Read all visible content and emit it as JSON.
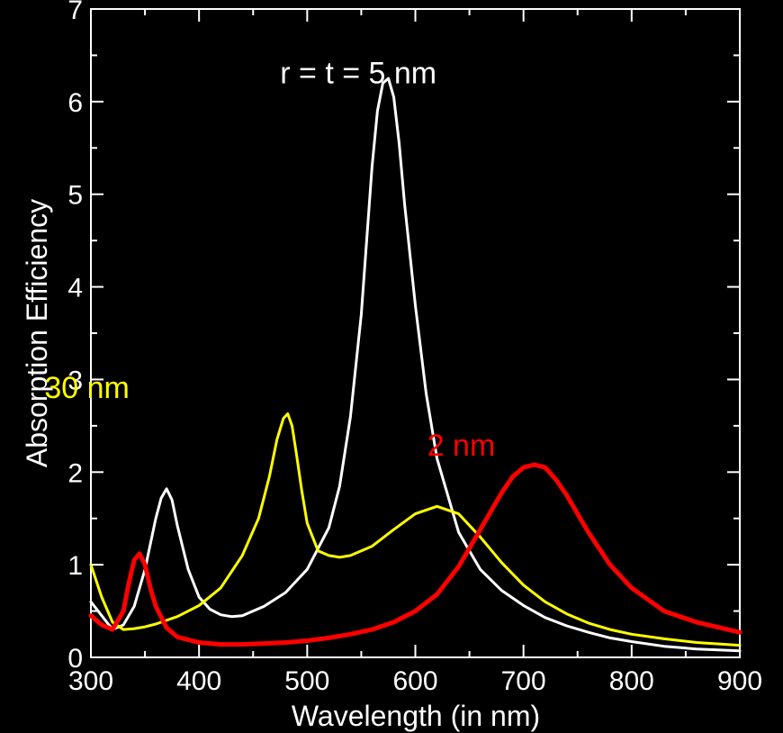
{
  "chart_data": {
    "type": "line",
    "title": "",
    "xlabel": "Wavelength (in nm)",
    "ylabel": "Absorption Efficiency",
    "xlim": [
      300,
      900
    ],
    "ylim": [
      0,
      7.0
    ],
    "xticks": [
      300,
      400,
      500,
      600,
      700,
      800,
      900
    ],
    "yticks": [
      0,
      1,
      2,
      3,
      4,
      5,
      6,
      7
    ],
    "grid": false,
    "background": "#000000",
    "axis_color": "#ffffff",
    "annotations": [
      {
        "text": "r = t = 5 nm",
        "x": 475,
        "y": 6.2,
        "color": "#ffffff"
      },
      {
        "text": "30 nm",
        "x": 257,
        "y": 2.8,
        "color": "#ffff00"
      },
      {
        "text": "2 nm",
        "x": 611,
        "y": 2.18,
        "color": "#ff0000"
      }
    ],
    "series": [
      {
        "color": "#ffffff",
        "width": 3,
        "x": [
          300,
          310,
          320,
          330,
          340,
          350,
          360,
          365,
          370,
          375,
          380,
          390,
          400,
          410,
          420,
          430,
          440,
          460,
          480,
          500,
          520,
          530,
          540,
          550,
          555,
          560,
          565,
          570,
          575,
          580,
          585,
          590,
          600,
          610,
          620,
          640,
          660,
          680,
          700,
          720,
          740,
          760,
          780,
          800,
          830,
          860,
          900
        ],
        "y": [
          0.6,
          0.45,
          0.3,
          0.35,
          0.55,
          0.95,
          1.5,
          1.72,
          1.82,
          1.7,
          1.42,
          0.95,
          0.65,
          0.52,
          0.46,
          0.44,
          0.45,
          0.55,
          0.7,
          0.95,
          1.4,
          1.85,
          2.6,
          3.7,
          4.5,
          5.3,
          5.9,
          6.2,
          6.25,
          6.05,
          5.55,
          4.9,
          3.8,
          2.85,
          2.15,
          1.35,
          0.95,
          0.72,
          0.56,
          0.43,
          0.34,
          0.27,
          0.21,
          0.17,
          0.12,
          0.09,
          0.07
        ]
      },
      {
        "color": "#ffff00",
        "width": 3,
        "x": [
          300,
          310,
          320,
          330,
          340,
          350,
          360,
          380,
          400,
          420,
          440,
          455,
          465,
          472,
          478,
          482,
          486,
          490,
          495,
          500,
          510,
          520,
          530,
          540,
          560,
          580,
          600,
          620,
          640,
          660,
          680,
          700,
          720,
          740,
          760,
          780,
          800,
          830,
          860,
          900
        ],
        "y": [
          1.0,
          0.65,
          0.38,
          0.3,
          0.31,
          0.33,
          0.36,
          0.44,
          0.56,
          0.75,
          1.1,
          1.5,
          1.95,
          2.35,
          2.58,
          2.63,
          2.5,
          2.2,
          1.8,
          1.45,
          1.15,
          1.1,
          1.08,
          1.1,
          1.2,
          1.38,
          1.55,
          1.63,
          1.55,
          1.3,
          1.02,
          0.78,
          0.6,
          0.47,
          0.37,
          0.3,
          0.25,
          0.2,
          0.16,
          0.13
        ]
      },
      {
        "color": "#ff0000",
        "width": 5,
        "x": [
          300,
          310,
          320,
          330,
          335,
          340,
          345,
          350,
          355,
          360,
          370,
          380,
          400,
          420,
          440,
          460,
          480,
          500,
          520,
          540,
          560,
          580,
          600,
          620,
          640,
          660,
          680,
          690,
          700,
          710,
          720,
          730,
          740,
          760,
          780,
          800,
          830,
          860,
          900
        ],
        "y": [
          0.45,
          0.35,
          0.3,
          0.5,
          0.8,
          1.05,
          1.12,
          1.0,
          0.75,
          0.55,
          0.32,
          0.22,
          0.16,
          0.14,
          0.14,
          0.15,
          0.16,
          0.18,
          0.21,
          0.25,
          0.3,
          0.38,
          0.5,
          0.68,
          0.98,
          1.38,
          1.78,
          1.95,
          2.05,
          2.08,
          2.05,
          1.92,
          1.75,
          1.35,
          1.0,
          0.75,
          0.5,
          0.38,
          0.27
        ]
      }
    ]
  }
}
